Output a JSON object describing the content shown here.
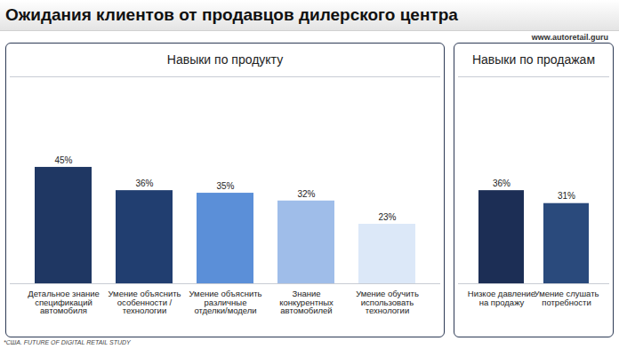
{
  "title": "Ожидания клиентов от продавцов дилерского центра",
  "website": "www.autoretail.guru",
  "source": "*США. FUTURE OF DIGITAL RETAIL STUDY",
  "chart_data": [
    {
      "type": "bar",
      "title": "Навыки по продукту",
      "categories": [
        "Детальное знание спецификаций автомобиля",
        "Умение объяснить особенности / технологии",
        "Умение объяснить различные отделки/модели",
        "Знание конкурентных автомобилей",
        "Умение обучить использовать технологии"
      ],
      "values": [
        45,
        36,
        35,
        32,
        23
      ],
      "value_labels": [
        "45%",
        "36%",
        "35%",
        "32%",
        "23%"
      ],
      "colors": [
        "#1f3763",
        "#213e70",
        "#5b8fd8",
        "#9fbde9",
        "#dce8f8"
      ],
      "ylim": [
        0,
        80
      ],
      "yticks": [],
      "data_labels": true,
      "tick_labels": "x",
      "grid": false
    },
    {
      "type": "bar",
      "title": "Навыки по продажам",
      "categories": [
        "Низкое давление на продажу",
        "Умение слушать потребности"
      ],
      "values": [
        36,
        31
      ],
      "value_labels": [
        "36%",
        "31%"
      ],
      "colors": [
        "#1c2e55",
        "#2a4a7c"
      ],
      "ylim": [
        0,
        80
      ],
      "yticks": [],
      "data_labels": true,
      "tick_labels": "x",
      "grid": false
    }
  ]
}
